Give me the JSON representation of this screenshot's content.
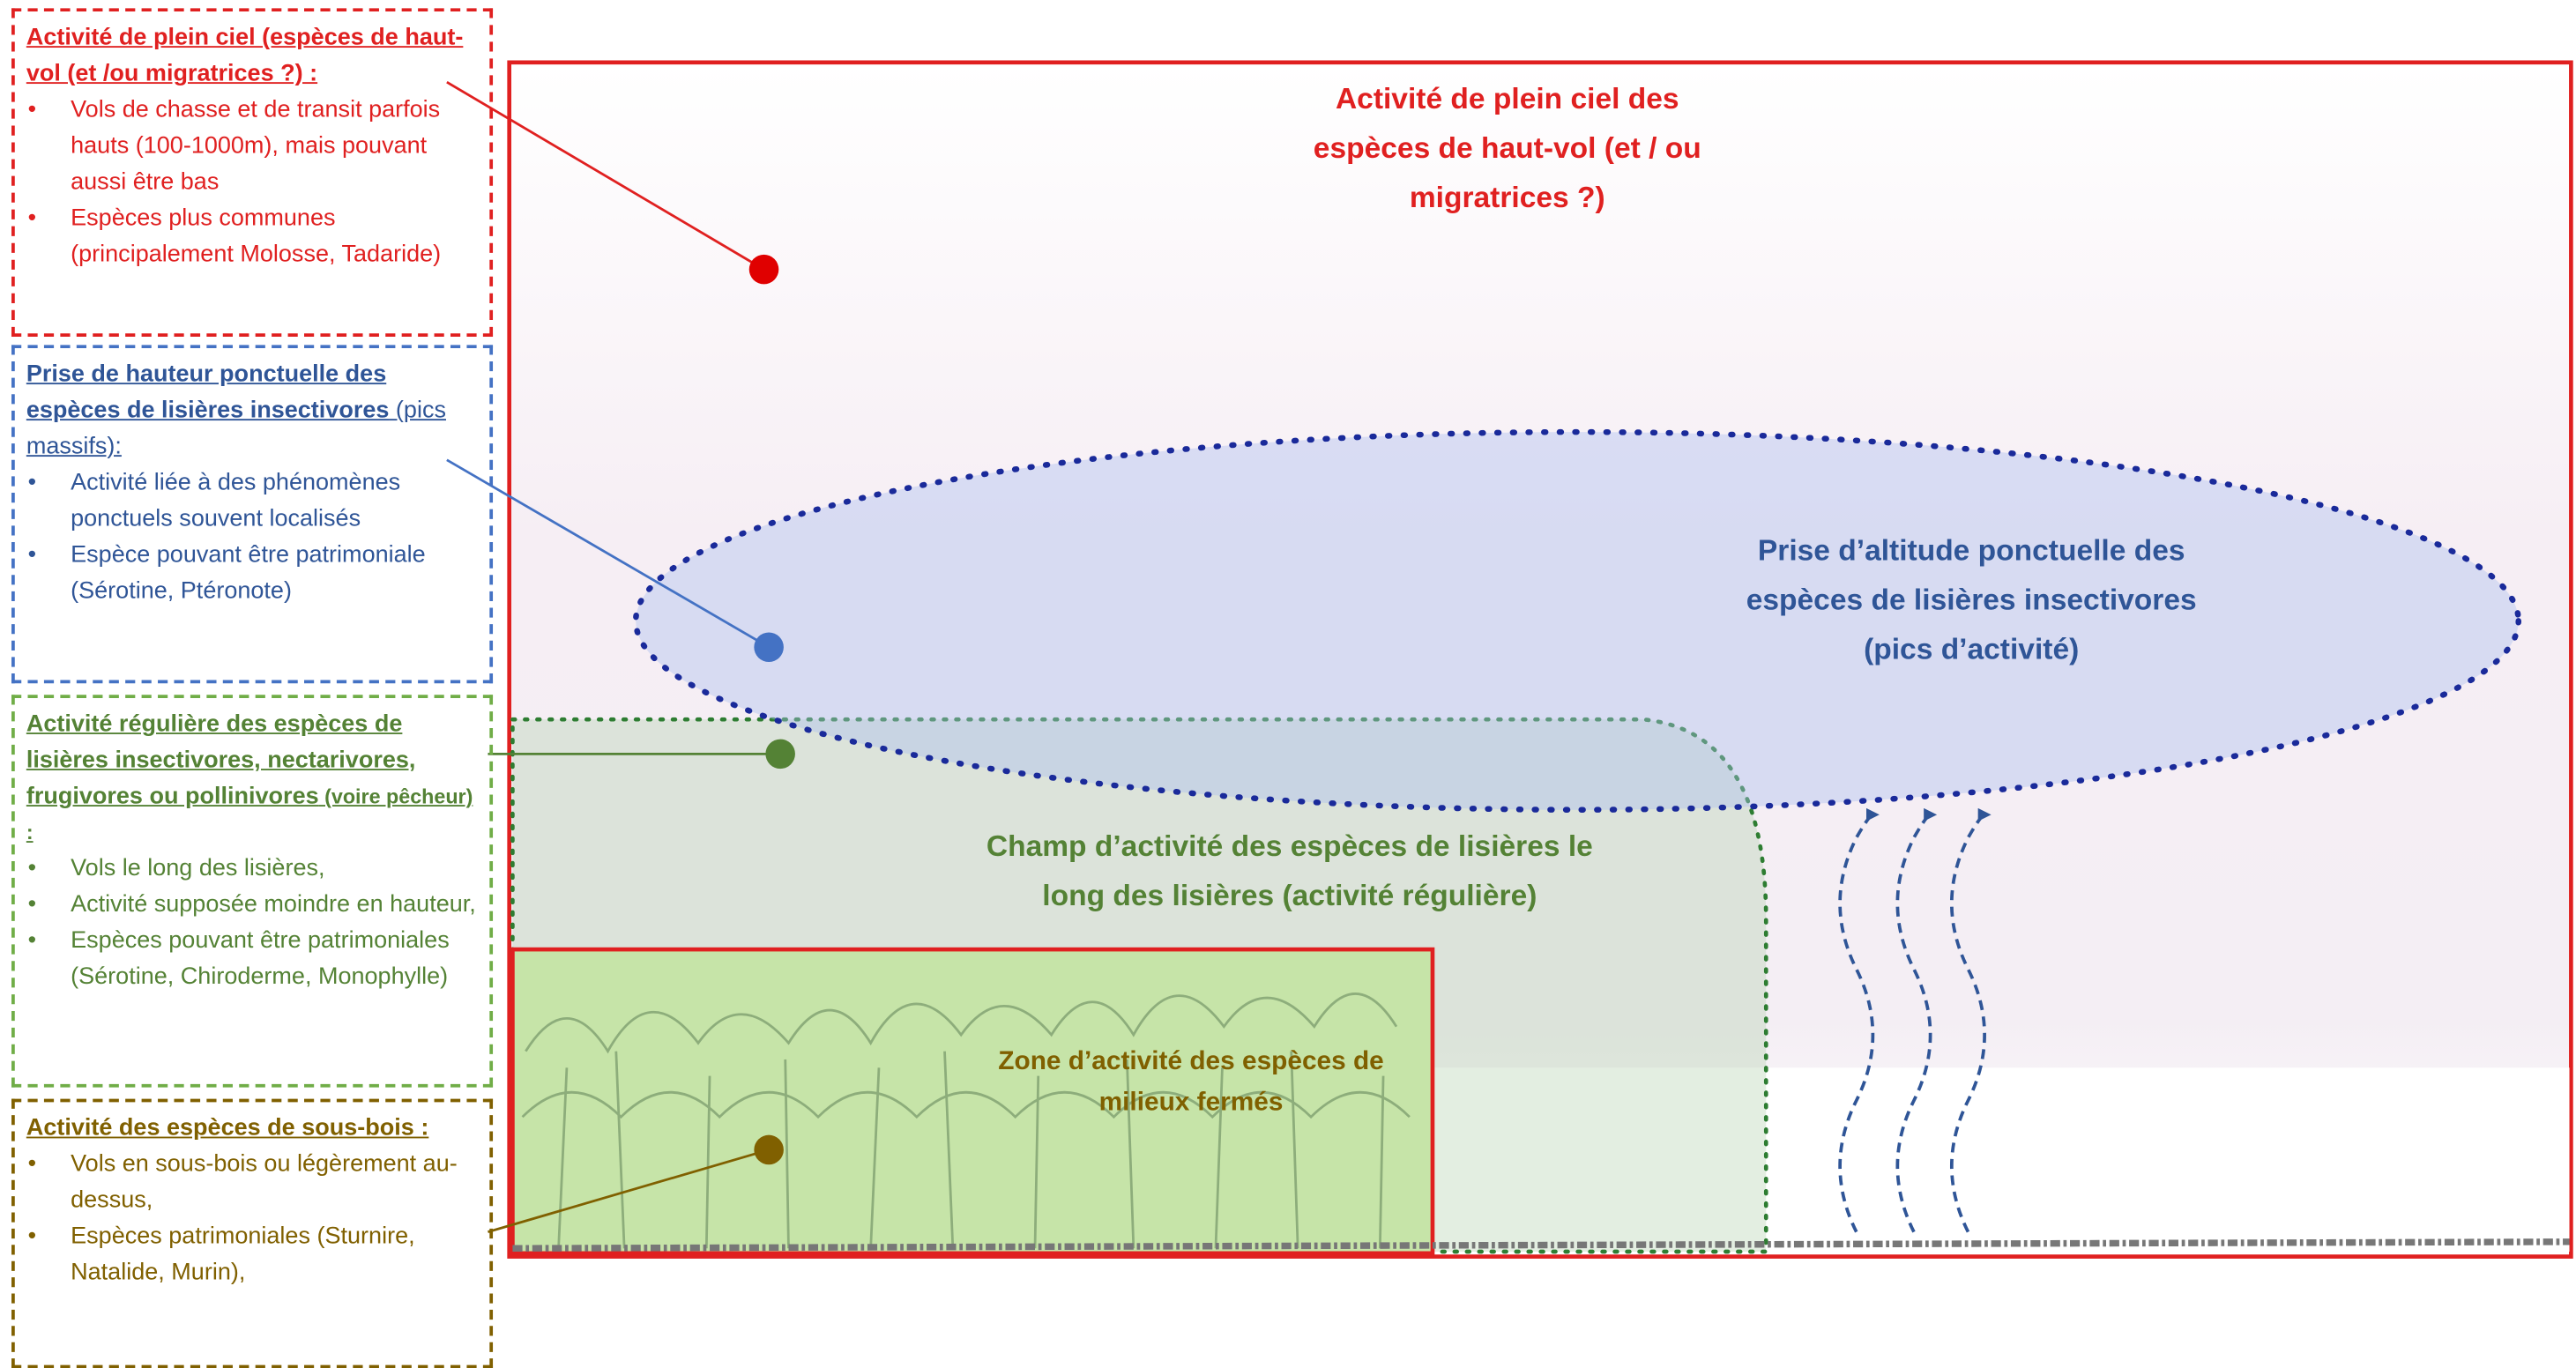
{
  "legend_boxes": [
    {
      "title": "Activité de plein ciel (espèces de haut-vol (et /ou migratrices ?) :",
      "bullets": [
        "Vols de chasse et de transit parfois hauts (100-1000m), mais pouvant aussi être bas",
        "Espèces plus communes (principalement Molosse, Tadaride)"
      ]
    },
    {
      "title": "Prise de hauteur ponctuelle des espèces de lisières insectivores",
      "title_suffix": " (pics massifs):",
      "bullets": [
        "Activité liée à des phénomènes ponctuels souvent localisés",
        "Espèce pouvant être patrimoniale (Sérotine, Ptéronote)"
      ]
    },
    {
      "title": "Activité régulière des espèces de lisières insectivores, nectarivores, frugivores ou pollinivores",
      "title_suffix": " (voire pêcheur) :",
      "bullets": [
        "Vols le long des lisières,",
        "Activité supposée moindre en hauteur,",
        "Espèces pouvant être patrimoniales (Sérotine, Chiroderme, Monophylle)"
      ]
    },
    {
      "title": "Activité des espèces de sous-bois :",
      "bullets": [
        "Vols en sous-bois ou légèrement au- dessus,",
        "Espèces patrimoniales (Sturnire, Natalide, Murin),"
      ]
    }
  ],
  "zones": {
    "sky": "Activité de plein ciel des espèces de haut-vol (et / ou migratrices ?)",
    "altitude": "Prise d’altitude ponctuelle des espèces de lisières insectivores (pics d’activité)",
    "edge": "Champ d’activité des espèces de lisières le long des lisières (activité régulière)",
    "forest": "Zone d’activité des espèces de milieux fermés"
  }
}
